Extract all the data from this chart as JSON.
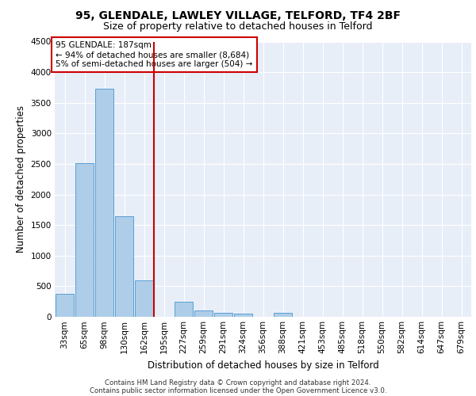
{
  "title1": "95, GLENDALE, LAWLEY VILLAGE, TELFORD, TF4 2BF",
  "title2": "Size of property relative to detached houses in Telford",
  "xlabel": "Distribution of detached houses by size in Telford",
  "ylabel": "Number of detached properties",
  "bar_labels": [
    "33sqm",
    "65sqm",
    "98sqm",
    "130sqm",
    "162sqm",
    "195sqm",
    "227sqm",
    "259sqm",
    "291sqm",
    "324sqm",
    "356sqm",
    "388sqm",
    "421sqm",
    "453sqm",
    "485sqm",
    "518sqm",
    "550sqm",
    "582sqm",
    "614sqm",
    "647sqm",
    "679sqm"
  ],
  "bar_values": [
    375,
    2510,
    3730,
    1640,
    600,
    0,
    240,
    110,
    70,
    55,
    0,
    65,
    0,
    0,
    0,
    0,
    0,
    0,
    0,
    0,
    0
  ],
  "bar_color": "#aecde8",
  "bar_edge_color": "#5a9fd4",
  "property_line_color": "#cc0000",
  "property_line_x": 4.5,
  "annotation_text": "95 GLENDALE: 187sqm\n← 94% of detached houses are smaller (8,684)\n5% of semi-detached houses are larger (504) →",
  "annotation_box_color": "#cc0000",
  "ylim": [
    0,
    4500
  ],
  "yticks": [
    0,
    500,
    1000,
    1500,
    2000,
    2500,
    3000,
    3500,
    4000,
    4500
  ],
  "background_color": "#e8eef8",
  "grid_color": "#ffffff",
  "footer_line1": "Contains HM Land Registry data © Crown copyright and database right 2024.",
  "footer_line2": "Contains public sector information licensed under the Open Government Licence v3.0.",
  "title1_fontsize": 10,
  "title2_fontsize": 9,
  "xlabel_fontsize": 8.5,
  "ylabel_fontsize": 8.5,
  "tick_fontsize": 7.5
}
